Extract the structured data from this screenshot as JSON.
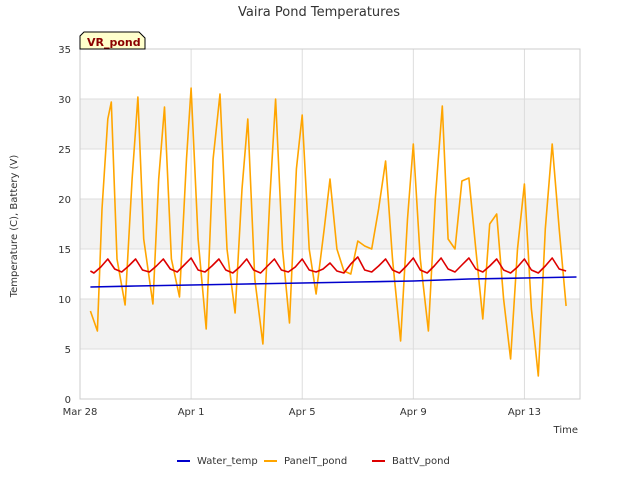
{
  "chart_data": {
    "type": "line",
    "title": "Vaira Pond Temperatures",
    "xlabel": "Time",
    "ylabel": "Temperature (C), Battery (V)",
    "site_badge": "VR_pond",
    "ylim": [
      0,
      35
    ],
    "xlim": [
      "2024-03-28",
      "2024-04-15T00:00"
    ],
    "y_ticks": [
      0,
      5,
      10,
      15,
      20,
      25,
      30,
      35
    ],
    "x_ticks": [
      {
        "date": "2024-03-28",
        "label": "Mar 28"
      },
      {
        "date": "2024-04-01",
        "label": "Apr 1"
      },
      {
        "date": "2024-04-05",
        "label": "Apr 5"
      },
      {
        "date": "2024-04-09",
        "label": "Apr 9"
      },
      {
        "date": "2024-04-13",
        "label": "Apr 13"
      }
    ],
    "grid": true,
    "legend_position": "bottom",
    "series": [
      {
        "name": "Water_temp",
        "color": "#0000cc",
        "points": [
          [
            "2024-03-28T09:00",
            11.2
          ],
          [
            "2024-03-30T00:00",
            11.3
          ],
          [
            "2024-04-01T00:00",
            11.4
          ],
          [
            "2024-04-03T00:00",
            11.5
          ],
          [
            "2024-04-05T00:00",
            11.6
          ],
          [
            "2024-04-07T00:00",
            11.7
          ],
          [
            "2024-04-09T00:00",
            11.8
          ],
          [
            "2024-04-11T00:00",
            12.0
          ],
          [
            "2024-04-13T00:00",
            12.1
          ],
          [
            "2024-04-14T21:00",
            12.2
          ]
        ]
      },
      {
        "name": "PanelT_pond",
        "color": "#ffa500",
        "points": [
          [
            "2024-03-28T09:00",
            8.8
          ],
          [
            "2024-03-28T15:00",
            6.8
          ],
          [
            "2024-03-28T19:00",
            19.0
          ],
          [
            "2024-03-29T00:00",
            28.0
          ],
          [
            "2024-03-29T03:00",
            29.7
          ],
          [
            "2024-03-29T08:00",
            14.0
          ],
          [
            "2024-03-29T15:00",
            9.4
          ],
          [
            "2024-03-29T21:00",
            22.0
          ],
          [
            "2024-03-30T02:00",
            30.2
          ],
          [
            "2024-03-30T07:00",
            16.0
          ],
          [
            "2024-03-30T15:00",
            9.5
          ],
          [
            "2024-03-30T20:00",
            22.0
          ],
          [
            "2024-03-31T01:00",
            29.2
          ],
          [
            "2024-03-31T07:00",
            14.0
          ],
          [
            "2024-03-31T14:00",
            10.2
          ],
          [
            "2024-03-31T20:00",
            24.0
          ],
          [
            "2024-04-01T00:00",
            31.1
          ],
          [
            "2024-04-01T06:00",
            16.0
          ],
          [
            "2024-04-01T13:00",
            7.0
          ],
          [
            "2024-04-01T19:00",
            24.0
          ],
          [
            "2024-04-02T01:00",
            30.5
          ],
          [
            "2024-04-02T07:00",
            15.0
          ],
          [
            "2024-04-02T14:00",
            8.6
          ],
          [
            "2024-04-02T20:00",
            21.0
          ],
          [
            "2024-04-03T01:00",
            28.0
          ],
          [
            "2024-04-03T07:00",
            12.0
          ],
          [
            "2024-04-03T14:00",
            5.5
          ],
          [
            "2024-04-03T20:00",
            20.0
          ],
          [
            "2024-04-04T01:00",
            30.0
          ],
          [
            "2024-04-04T07:00",
            15.0
          ],
          [
            "2024-04-04T13:00",
            7.6
          ],
          [
            "2024-04-04T19:00",
            23.0
          ],
          [
            "2024-04-05T00:00",
            28.4
          ],
          [
            "2024-04-05T06:00",
            15.0
          ],
          [
            "2024-04-05T12:00",
            10.5
          ],
          [
            "2024-04-05T19:00",
            17.0
          ],
          [
            "2024-04-06T00:00",
            22.0
          ],
          [
            "2024-04-06T06:00",
            15.0
          ],
          [
            "2024-04-06T12:00",
            12.8
          ],
          [
            "2024-04-06T18:00",
            12.5
          ],
          [
            "2024-04-07T00:00",
            15.8
          ],
          [
            "2024-04-07T06:00",
            15.3
          ],
          [
            "2024-04-07T12:00",
            15.0
          ],
          [
            "2024-04-07T18:00",
            19.0
          ],
          [
            "2024-04-08T00:00",
            23.8
          ],
          [
            "2024-04-08T06:00",
            14.0
          ],
          [
            "2024-04-08T13:00",
            5.8
          ],
          [
            "2024-04-08T19:00",
            18.0
          ],
          [
            "2024-04-09T00:00",
            25.5
          ],
          [
            "2024-04-09T06:00",
            14.0
          ],
          [
            "2024-04-09T13:00",
            6.8
          ],
          [
            "2024-04-09T19:00",
            20.0
          ],
          [
            "2024-04-10T01:00",
            29.3
          ],
          [
            "2024-04-10T06:00",
            16.0
          ],
          [
            "2024-04-10T12:00",
            15.0
          ],
          [
            "2024-04-10T18:00",
            21.8
          ],
          [
            "2024-04-11T00:00",
            22.1
          ],
          [
            "2024-04-11T06:00",
            15.0
          ],
          [
            "2024-04-11T12:00",
            8.0
          ],
          [
            "2024-04-11T18:00",
            17.5
          ],
          [
            "2024-04-12T00:00",
            18.5
          ],
          [
            "2024-04-12T06:00",
            10.0
          ],
          [
            "2024-04-12T12:00",
            4.0
          ],
          [
            "2024-04-12T18:00",
            15.0
          ],
          [
            "2024-04-13T00:00",
            21.5
          ],
          [
            "2024-04-13T06:00",
            9.0
          ],
          [
            "2024-04-13T12:00",
            2.3
          ],
          [
            "2024-04-13T18:00",
            17.0
          ],
          [
            "2024-04-14T00:00",
            25.5
          ],
          [
            "2024-04-14T06:00",
            17.0
          ],
          [
            "2024-04-14T12:00",
            9.3
          ]
        ]
      },
      {
        "name": "BattV_pond",
        "color": "#dd0000",
        "points": [
          [
            "2024-03-28T09:00",
            12.8
          ],
          [
            "2024-03-28T12:00",
            12.6
          ],
          [
            "2024-03-28T18:00",
            13.2
          ],
          [
            "2024-03-29T00:00",
            14.0
          ],
          [
            "2024-03-29T06:00",
            13.0
          ],
          [
            "2024-03-29T12:00",
            12.7
          ],
          [
            "2024-03-29T18:00",
            13.3
          ],
          [
            "2024-03-30T00:00",
            14.0
          ],
          [
            "2024-03-30T06:00",
            12.9
          ],
          [
            "2024-03-30T12:00",
            12.7
          ],
          [
            "2024-03-30T18:00",
            13.3
          ],
          [
            "2024-03-31T00:00",
            14.0
          ],
          [
            "2024-03-31T06:00",
            13.0
          ],
          [
            "2024-03-31T12:00",
            12.7
          ],
          [
            "2024-03-31T18:00",
            13.4
          ],
          [
            "2024-04-01T00:00",
            14.1
          ],
          [
            "2024-04-01T06:00",
            12.9
          ],
          [
            "2024-04-01T12:00",
            12.7
          ],
          [
            "2024-04-01T18:00",
            13.3
          ],
          [
            "2024-04-02T00:00",
            14.0
          ],
          [
            "2024-04-02T06:00",
            12.9
          ],
          [
            "2024-04-02T12:00",
            12.6
          ],
          [
            "2024-04-02T18:00",
            13.2
          ],
          [
            "2024-04-03T00:00",
            14.0
          ],
          [
            "2024-04-03T06:00",
            12.9
          ],
          [
            "2024-04-03T12:00",
            12.6
          ],
          [
            "2024-04-03T18:00",
            13.3
          ],
          [
            "2024-04-04T00:00",
            14.0
          ],
          [
            "2024-04-04T06:00",
            12.9
          ],
          [
            "2024-04-04T12:00",
            12.7
          ],
          [
            "2024-04-04T18:00",
            13.2
          ],
          [
            "2024-04-05T00:00",
            14.0
          ],
          [
            "2024-04-05T06:00",
            12.9
          ],
          [
            "2024-04-05T12:00",
            12.7
          ],
          [
            "2024-04-05T18:00",
            13.0
          ],
          [
            "2024-04-06T00:00",
            13.6
          ],
          [
            "2024-04-06T06:00",
            12.8
          ],
          [
            "2024-04-06T12:00",
            12.6
          ],
          [
            "2024-04-06T18:00",
            13.5
          ],
          [
            "2024-04-07T00:00",
            14.2
          ],
          [
            "2024-04-07T06:00",
            12.9
          ],
          [
            "2024-04-07T12:00",
            12.7
          ],
          [
            "2024-04-07T18:00",
            13.3
          ],
          [
            "2024-04-08T00:00",
            14.0
          ],
          [
            "2024-04-08T06:00",
            12.9
          ],
          [
            "2024-04-08T12:00",
            12.6
          ],
          [
            "2024-04-08T18:00",
            13.3
          ],
          [
            "2024-04-09T00:00",
            14.1
          ],
          [
            "2024-04-09T06:00",
            12.9
          ],
          [
            "2024-04-09T12:00",
            12.6
          ],
          [
            "2024-04-09T18:00",
            13.3
          ],
          [
            "2024-04-10T00:00",
            14.1
          ],
          [
            "2024-04-10T06:00",
            13.0
          ],
          [
            "2024-04-10T12:00",
            12.7
          ],
          [
            "2024-04-10T18:00",
            13.4
          ],
          [
            "2024-04-11T00:00",
            14.1
          ],
          [
            "2024-04-11T06:00",
            13.0
          ],
          [
            "2024-04-11T12:00",
            12.7
          ],
          [
            "2024-04-11T18:00",
            13.3
          ],
          [
            "2024-04-12T00:00",
            14.0
          ],
          [
            "2024-04-12T06:00",
            12.9
          ],
          [
            "2024-04-12T12:00",
            12.6
          ],
          [
            "2024-04-12T18:00",
            13.2
          ],
          [
            "2024-04-13T00:00",
            14.0
          ],
          [
            "2024-04-13T06:00",
            12.9
          ],
          [
            "2024-04-13T12:00",
            12.6
          ],
          [
            "2024-04-13T18:00",
            13.3
          ],
          [
            "2024-04-14T00:00",
            14.1
          ],
          [
            "2024-04-14T06:00",
            13.0
          ],
          [
            "2024-04-14T12:00",
            12.8
          ]
        ]
      }
    ]
  }
}
